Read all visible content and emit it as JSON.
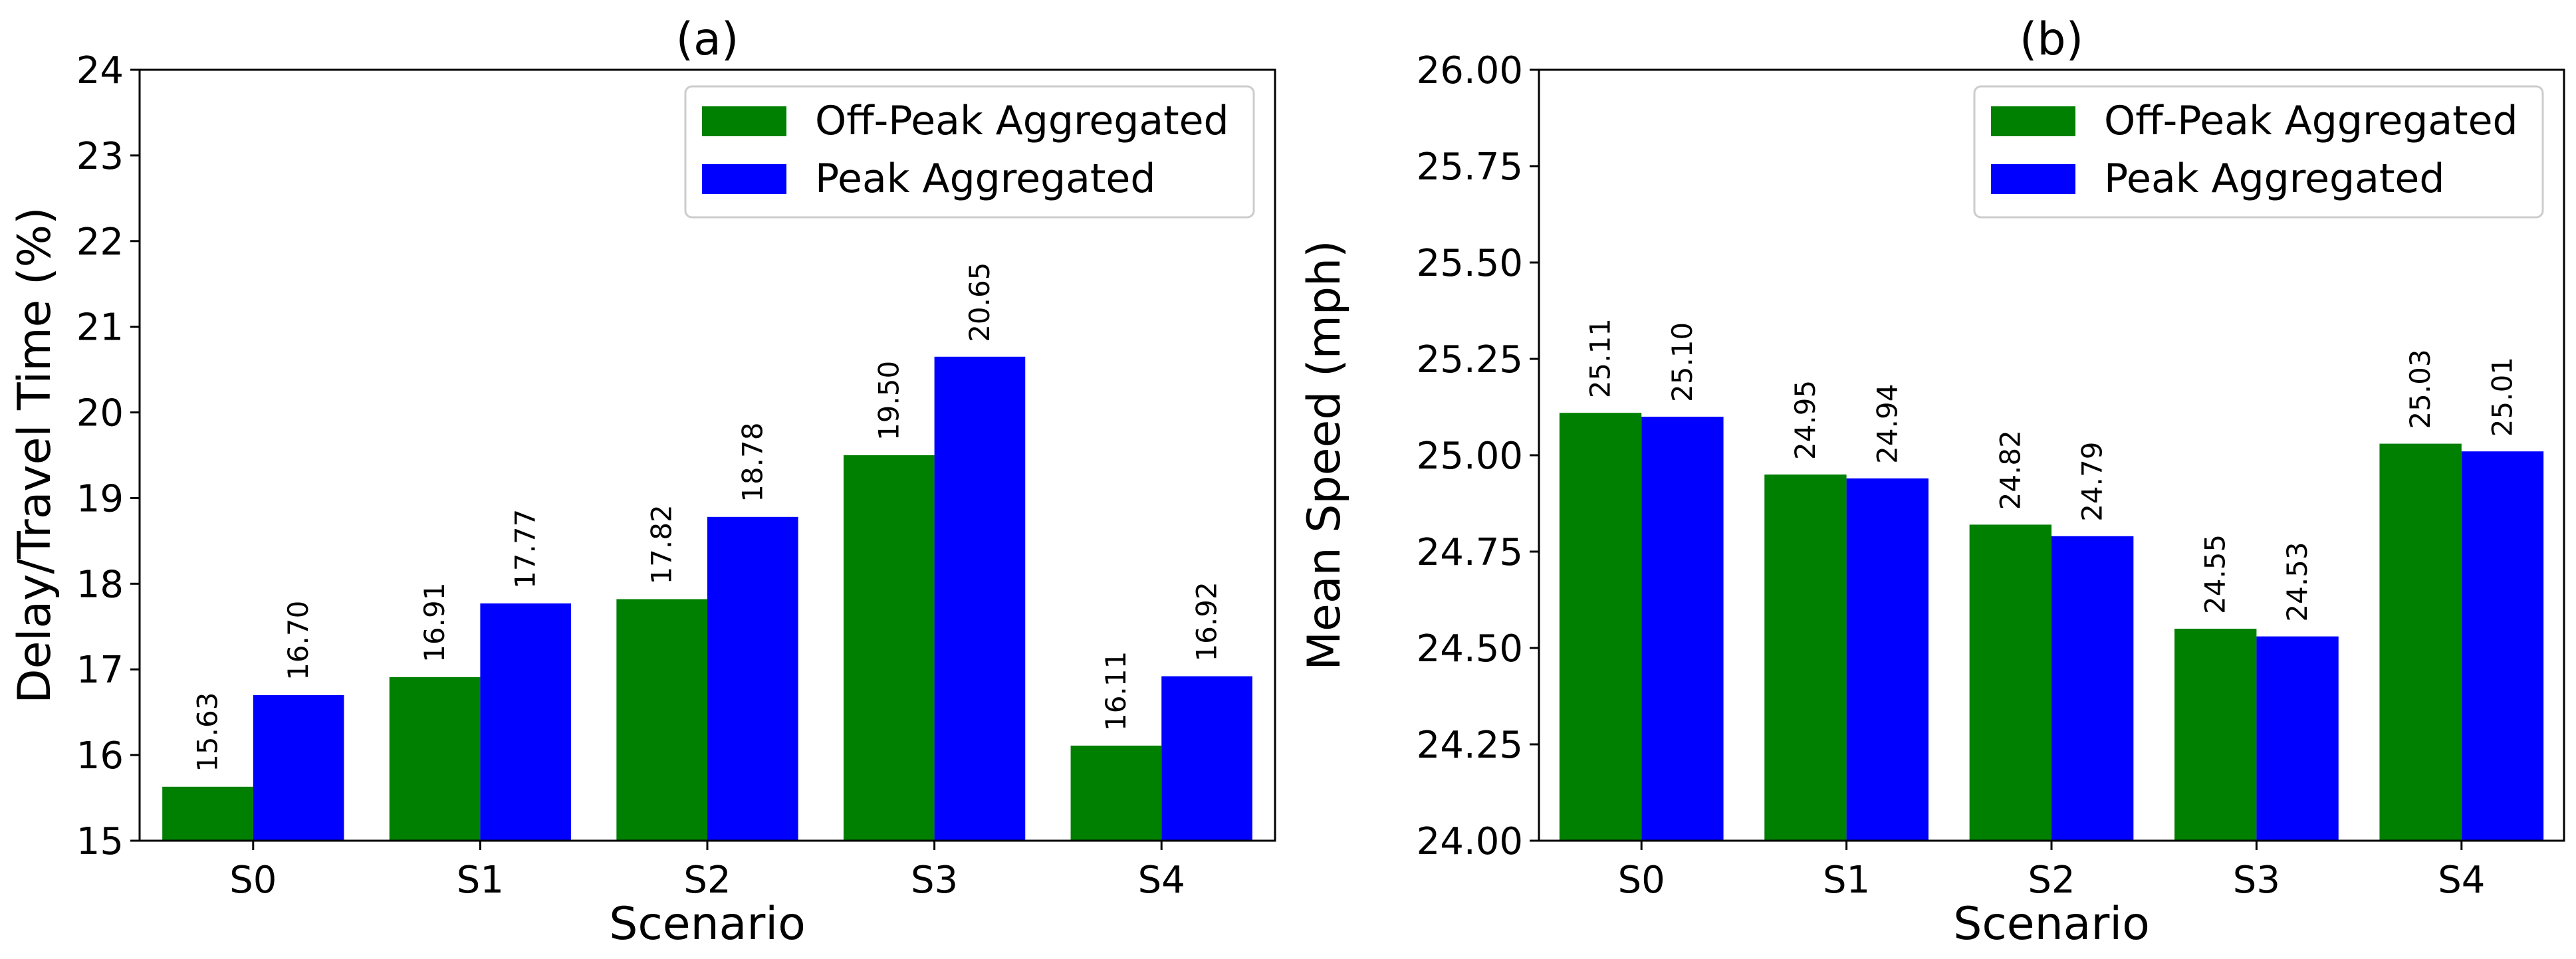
{
  "chart_data": [
    {
      "type": "bar",
      "title": "(a)",
      "xlabel": "Scenario",
      "ylabel": "Delay/Travel Time (%)",
      "categories": [
        "S0",
        "S1",
        "S2",
        "S3",
        "S4"
      ],
      "ylim": [
        15,
        24
      ],
      "yticks": [
        "15",
        "16",
        "17",
        "18",
        "19",
        "20",
        "21",
        "22",
        "23",
        "24"
      ],
      "legend_position": "top-right",
      "series": [
        {
          "name": "Off-Peak Aggregated",
          "color": "#008000",
          "values": [
            15.63,
            16.91,
            17.82,
            19.5,
            16.11
          ],
          "labels": [
            "15.63",
            "16.91",
            "17.82",
            "19.50",
            "16.11"
          ]
        },
        {
          "name": "Peak Aggregated",
          "color": "#0000FF",
          "values": [
            16.7,
            17.77,
            18.78,
            20.65,
            16.92
          ],
          "labels": [
            "16.70",
            "17.77",
            "18.78",
            "20.65",
            "16.92"
          ]
        }
      ]
    },
    {
      "type": "bar",
      "title": "(b)",
      "xlabel": "Scenario",
      "ylabel": "Mean Speed (mph)",
      "categories": [
        "S0",
        "S1",
        "S2",
        "S3",
        "S4"
      ],
      "ylim": [
        24.0,
        26.0
      ],
      "yticks": [
        "24.00",
        "24.25",
        "24.50",
        "24.75",
        "25.00",
        "25.25",
        "25.50",
        "25.75",
        "26.00"
      ],
      "legend_position": "top-right",
      "series": [
        {
          "name": "Off-Peak Aggregated",
          "color": "#008000",
          "values": [
            25.11,
            24.95,
            24.82,
            24.55,
            25.03
          ],
          "labels": [
            "25.11",
            "24.95",
            "24.82",
            "24.55",
            "25.03"
          ]
        },
        {
          "name": "Peak Aggregated",
          "color": "#0000FF",
          "values": [
            25.1,
            24.94,
            24.79,
            24.53,
            25.01
          ],
          "labels": [
            "25.10",
            "24.94",
            "24.79",
            "24.53",
            "25.01"
          ]
        }
      ]
    }
  ]
}
